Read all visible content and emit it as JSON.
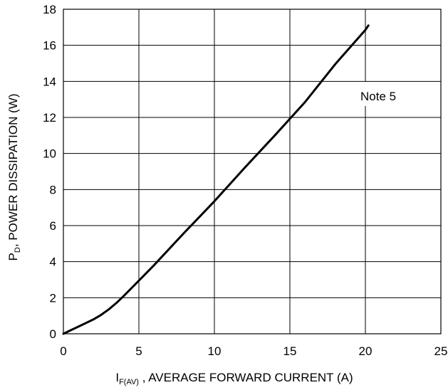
{
  "chart_data": {
    "type": "line",
    "xlabel": {
      "main": "I",
      "sub": "F(AV)",
      "rest": " , AVERAGE FORWARD CURRENT (A)"
    },
    "ylabel": {
      "main": "P",
      "sub": "D",
      "rest": ", POWER DISSIPATION (W)"
    },
    "xlim": [
      0,
      25
    ],
    "ylim": [
      0,
      18
    ],
    "xticks": [
      0,
      5,
      10,
      15,
      20,
      25
    ],
    "yticks": [
      0,
      2,
      4,
      6,
      8,
      10,
      12,
      14,
      16,
      18
    ],
    "grid": true,
    "annotation": "Note 5",
    "series": [
      {
        "x": [
          0,
          0.5,
          1,
          1.5,
          2,
          2.5,
          3,
          3.5,
          4,
          5,
          6,
          8,
          10,
          12,
          14,
          16,
          18,
          20,
          20.2
        ],
        "y": [
          0,
          0.2,
          0.4,
          0.6,
          0.8,
          1.05,
          1.35,
          1.7,
          2.1,
          2.95,
          3.8,
          5.6,
          7.35,
          9.2,
          11.0,
          12.85,
          14.95,
          16.85,
          17.1
        ]
      }
    ]
  }
}
